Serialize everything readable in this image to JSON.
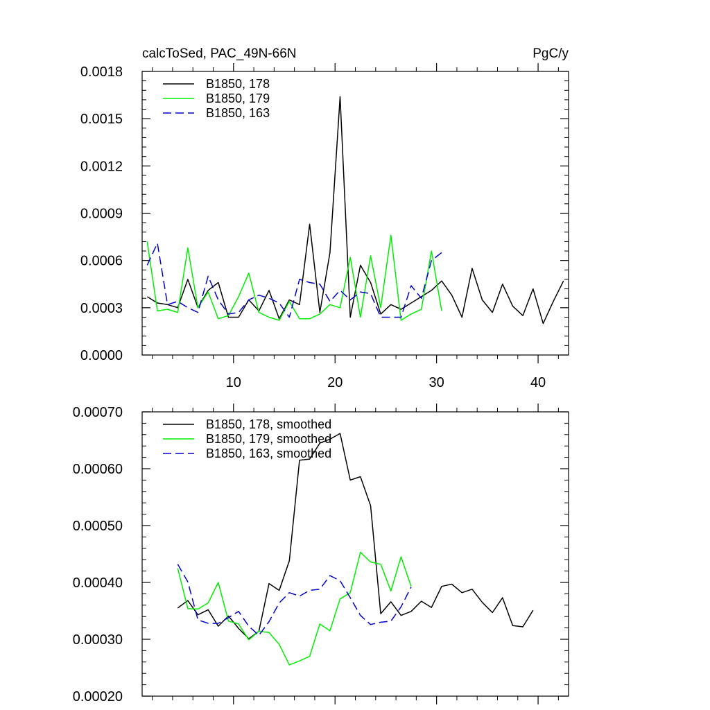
{
  "chart_data": [
    {
      "type": "line",
      "title_left": "calcToSed, PAC_49N-66N",
      "title_right": "PgC/y",
      "xlabel": "",
      "ylabel": "",
      "xlim": [
        1,
        43
      ],
      "ylim": [
        0,
        0.0018
      ],
      "yticks": [
        "0.0000",
        "0.0003",
        "0.0006",
        "0.0009",
        "0.0012",
        "0.0015",
        "0.0018"
      ],
      "xticks": [
        "10",
        "20",
        "30",
        "40"
      ],
      "legend_position": "top-left",
      "series": [
        {
          "name": "B1850, 178",
          "color": "#000000",
          "dash": "solid",
          "x": [
            1.5,
            2.5,
            3.5,
            4.5,
            5.5,
            6.5,
            7.5,
            8.5,
            9.5,
            10.5,
            11.5,
            12.5,
            13.5,
            14.5,
            15.5,
            16.5,
            17.5,
            18.5,
            19.5,
            20.5,
            21.5,
            22.5,
            23.5,
            24.5,
            25.5,
            26.5,
            27.5,
            28.5,
            29.5,
            30.5,
            31.5,
            32.5,
            33.5,
            34.5,
            35.5,
            36.5,
            37.5,
            38.5,
            39.5,
            40.5,
            41.5,
            42.5
          ],
          "y": [
            0.00037,
            0.00033,
            0.00032,
            0.0003,
            0.00048,
            0.0003,
            0.00041,
            0.00046,
            0.00024,
            0.00024,
            0.00035,
            0.00028,
            0.00041,
            0.00023,
            0.00035,
            0.00032,
            0.00083,
            0.00027,
            0.00065,
            0.00164,
            0.00024,
            0.00057,
            0.00046,
            0.00026,
            0.00032,
            0.00029,
            0.00033,
            0.00037,
            0.00041,
            0.00047,
            0.00038,
            0.00024,
            0.00055,
            0.00035,
            0.00027,
            0.00045,
            0.00031,
            0.00025,
            0.00042,
            0.0002,
            0.00034,
            0.00047
          ]
        },
        {
          "name": "B1850, 179",
          "color": "#00ee00",
          "dash": "solid",
          "x": [
            1.5,
            2.5,
            3.5,
            4.5,
            5.5,
            6.5,
            7.5,
            8.5,
            9.5,
            10.5,
            11.5,
            12.5,
            13.5,
            14.5,
            15.5,
            16.5,
            17.5,
            18.5,
            19.5,
            20.5,
            21.5,
            22.5,
            23.5,
            24.5,
            25.5,
            26.5,
            27.5,
            28.5,
            29.5,
            30.5
          ],
          "y": [
            0.00072,
            0.00028,
            0.00029,
            0.00027,
            0.00068,
            0.0003,
            0.0004,
            0.00023,
            0.00025,
            0.00037,
            0.00052,
            0.00027,
            0.00024,
            0.00022,
            0.00034,
            0.00023,
            0.00023,
            0.00026,
            0.00032,
            0.0003,
            0.00062,
            0.00024,
            0.00063,
            0.0003,
            0.00076,
            0.00022,
            0.00026,
            0.00029,
            0.00066,
            0.00028
          ]
        },
        {
          "name": "B1850, 163",
          "color": "#0000cc",
          "dash": "dashed",
          "x": [
            1.5,
            2.5,
            3.5,
            4.5,
            5.5,
            6.5,
            7.5,
            8.5,
            9.5,
            10.5,
            11.5,
            12.5,
            13.5,
            14.5,
            15.5,
            16.5,
            17.5,
            18.5,
            19.5,
            20.5,
            21.5,
            22.5,
            23.5,
            24.5,
            25.5,
            26.5,
            27.5,
            28.5,
            29.5,
            30.5
          ],
          "y": [
            0.00057,
            0.00071,
            0.00032,
            0.00034,
            0.0003,
            0.00027,
            0.0005,
            0.00035,
            0.00026,
            0.00027,
            0.00035,
            0.00038,
            0.00036,
            0.00033,
            0.00024,
            0.00048,
            0.00046,
            0.00045,
            0.00034,
            0.00041,
            0.00035,
            0.0004,
            0.00039,
            0.00024,
            0.00024,
            0.00024,
            0.00044,
            0.00036,
            0.0006,
            0.00065
          ]
        }
      ]
    },
    {
      "type": "line",
      "xlabel": "",
      "ylabel": "",
      "xlim": [
        1,
        43
      ],
      "ylim": [
        0.0002,
        0.0007
      ],
      "yticks": [
        "0.00020",
        "0.00030",
        "0.00040",
        "0.00050",
        "0.00060",
        "0.00070"
      ],
      "legend_position": "top-left",
      "series": [
        {
          "name": "B1850, 178, smoothed",
          "color": "#000000",
          "dash": "solid",
          "x": [
            4.5,
            5.5,
            6.5,
            7.5,
            8.5,
            9.5,
            10.5,
            11.5,
            12.5,
            13.5,
            14.5,
            15.5,
            16.5,
            17.5,
            18.5,
            19.5,
            20.5,
            21.5,
            22.5,
            23.5,
            24.5,
            25.5,
            26.5,
            27.5,
            28.5,
            29.5,
            30.5,
            31.5,
            32.5,
            33.5,
            34.5,
            35.5,
            36.5,
            37.5,
            38.5,
            39.5
          ],
          "y": [
            0.000355,
            0.000368,
            0.000343,
            0.000352,
            0.000323,
            0.000341,
            0.000319,
            0.000301,
            0.000314,
            0.000398,
            0.000386,
            0.000438,
            0.000615,
            0.000617,
            0.000645,
            0.000652,
            0.000662,
            0.00058,
            0.000586,
            0.000535,
            0.000345,
            0.000366,
            0.000342,
            0.000349,
            0.000367,
            0.000356,
            0.000393,
            0.000397,
            0.000382,
            0.000388,
            0.000365,
            0.000347,
            0.000373,
            0.000324,
            0.000322,
            0.000351
          ]
        },
        {
          "name": "B1850, 179, smoothed",
          "color": "#00ee00",
          "dash": "solid",
          "x": [
            4.5,
            5.5,
            6.5,
            7.5,
            8.5,
            9.5,
            10.5,
            11.5,
            12.5,
            13.5,
            14.5,
            15.5,
            16.5,
            17.5,
            18.5,
            19.5,
            20.5,
            21.5,
            22.5,
            23.5,
            24.5,
            25.5,
            26.5,
            27.5
          ],
          "y": [
            0.000425,
            0.000354,
            0.000353,
            0.000364,
            0.0004,
            0.000332,
            0.000327,
            0.000299,
            0.000314,
            0.000312,
            0.000291,
            0.000255,
            0.000262,
            0.00027,
            0.000327,
            0.000315,
            0.000371,
            0.000382,
            0.000453,
            0.000436,
            0.000432,
            0.000385,
            0.000445,
            0.000393
          ]
        },
        {
          "name": "B1850, 163, smoothed",
          "color": "#0000cc",
          "dash": "dashed",
          "x": [
            4.5,
            5.5,
            6.5,
            7.5,
            8.5,
            9.5,
            10.5,
            11.5,
            12.5,
            13.5,
            14.5,
            15.5,
            16.5,
            17.5,
            18.5,
            19.5,
            20.5,
            21.5,
            22.5,
            23.5,
            24.5,
            25.5,
            26.5,
            27.5
          ],
          "y": [
            0.000432,
            0.000401,
            0.000334,
            0.000328,
            0.000328,
            0.000338,
            0.000349,
            0.000323,
            0.000307,
            0.000331,
            0.000364,
            0.000382,
            0.000376,
            0.000386,
            0.000388,
            0.000412,
            0.000403,
            0.000373,
            0.000342,
            0.000326,
            0.00033,
            0.000332,
            0.000357,
            0.000392
          ]
        }
      ]
    }
  ]
}
